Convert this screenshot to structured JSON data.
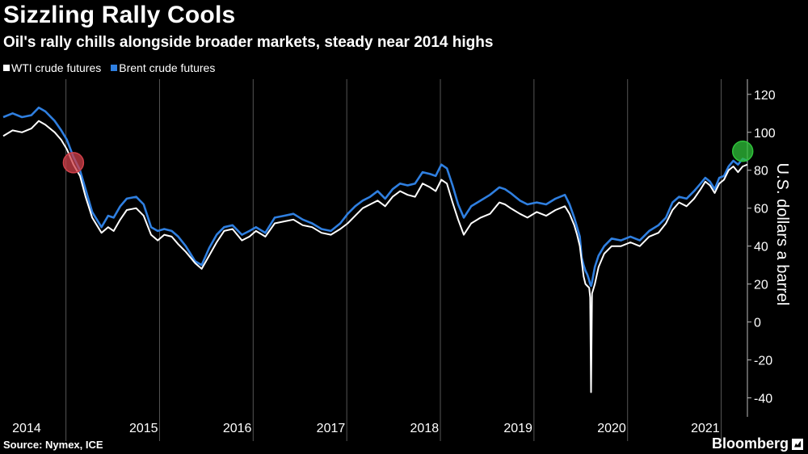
{
  "title": "Sizzling Rally Cools",
  "subtitle": "Oil's rally chills alongside broader markets, steady near 2014 highs",
  "source": "Source: Nymex, ICE",
  "brand": "Bloomberg",
  "colors": {
    "background": "#000000",
    "wti": "#ffffff",
    "brent": "#2f7fe0",
    "grid": "#555555",
    "start_marker": "#d0404a",
    "end_marker": "#2fc23a"
  },
  "chart_data": {
    "type": "line",
    "title": "Sizzling Rally Cools",
    "xlabel": "",
    "ylabel": "U.S. dollars a barrel",
    "ylim": [
      -50,
      128
    ],
    "xlim": [
      2014.0,
      2021.95
    ],
    "y_ticks": [
      120,
      100,
      80,
      60,
      40,
      20,
      0,
      -20,
      -40
    ],
    "x_tick_labels": [
      "2014",
      "2015",
      "2016",
      "2017",
      "2018",
      "2019",
      "2020",
      "2021"
    ],
    "x_tick_label_positions": [
      2014.25,
      2015.5,
      2016.5,
      2017.5,
      2018.5,
      2019.5,
      2020.5,
      2021.5
    ],
    "x_dividers": [
      2014.67,
      2015.67,
      2016.67,
      2017.67,
      2018.67,
      2019.67,
      2020.67,
      2021.67
    ],
    "legend": [
      "WTI crude futures",
      "Brent crude futures"
    ],
    "series": [
      {
        "name": "WTI crude futures",
        "x": [
          2014.0,
          2014.1,
          2014.2,
          2014.3,
          2014.38,
          2014.45,
          2014.55,
          2014.62,
          2014.68,
          2014.75,
          2014.82,
          2014.88,
          2014.95,
          2015.05,
          2015.12,
          2015.18,
          2015.25,
          2015.32,
          2015.42,
          2015.5,
          2015.58,
          2015.65,
          2015.72,
          2015.8,
          2015.87,
          2015.95,
          2016.0,
          2016.05,
          2016.12,
          2016.2,
          2016.28,
          2016.36,
          2016.45,
          2016.55,
          2016.63,
          2016.7,
          2016.8,
          2016.9,
          2017.0,
          2017.1,
          2017.2,
          2017.3,
          2017.4,
          2017.5,
          2017.6,
          2017.68,
          2017.76,
          2017.84,
          2017.92,
          2018.0,
          2018.08,
          2018.16,
          2018.24,
          2018.32,
          2018.4,
          2018.48,
          2018.56,
          2018.62,
          2018.68,
          2018.74,
          2018.8,
          2018.86,
          2018.92,
          2019.0,
          2019.1,
          2019.2,
          2019.3,
          2019.36,
          2019.42,
          2019.52,
          2019.6,
          2019.7,
          2019.8,
          2019.9,
          2020.0,
          2020.05,
          2020.1,
          2020.13,
          2020.16,
          2020.18,
          2020.2,
          2020.22,
          2020.24,
          2020.26,
          2020.27,
          2020.28,
          2020.29,
          2020.32,
          2020.36,
          2020.42,
          2020.5,
          2020.6,
          2020.7,
          2020.8,
          2020.9,
          2021.0,
          2021.08,
          2021.15,
          2021.22,
          2021.3,
          2021.38,
          2021.45,
          2021.5,
          2021.55,
          2021.6,
          2021.65,
          2021.7,
          2021.75,
          2021.8,
          2021.85,
          2021.9,
          2021.95
        ],
        "values": [
          98,
          101,
          100,
          102,
          106,
          104,
          100,
          96,
          91,
          83,
          77,
          66,
          55,
          47,
          50,
          48,
          54,
          59,
          60,
          56,
          46,
          43,
          46,
          45,
          41,
          37,
          34,
          31,
          28,
          35,
          42,
          48,
          49,
          43,
          45,
          48,
          45,
          52,
          53,
          54,
          51,
          50,
          47,
          46,
          49,
          52,
          56,
          60,
          62,
          64,
          61,
          66,
          69,
          67,
          66,
          73,
          71,
          69,
          75,
          73,
          63,
          54,
          46,
          52,
          55,
          57,
          63,
          62,
          60,
          57,
          55,
          58,
          56,
          59,
          61,
          57,
          51,
          46,
          40,
          32,
          24,
          20,
          19,
          18,
          13,
          -37,
          15,
          20,
          29,
          36,
          40,
          40,
          42,
          40,
          45,
          47,
          52,
          59,
          63,
          61,
          65,
          70,
          74,
          72,
          68,
          73,
          75,
          80,
          82,
          79,
          82,
          83
        ]
      },
      {
        "name": "Brent crude futures",
        "x": [
          2014.0,
          2014.1,
          2014.2,
          2014.3,
          2014.38,
          2014.45,
          2014.55,
          2014.62,
          2014.68,
          2014.75,
          2014.82,
          2014.88,
          2014.95,
          2015.05,
          2015.12,
          2015.18,
          2015.25,
          2015.32,
          2015.42,
          2015.5,
          2015.58,
          2015.65,
          2015.72,
          2015.8,
          2015.87,
          2015.95,
          2016.0,
          2016.05,
          2016.12,
          2016.2,
          2016.28,
          2016.36,
          2016.45,
          2016.55,
          2016.63,
          2016.7,
          2016.8,
          2016.9,
          2017.0,
          2017.1,
          2017.2,
          2017.3,
          2017.4,
          2017.5,
          2017.6,
          2017.68,
          2017.76,
          2017.84,
          2017.92,
          2018.0,
          2018.08,
          2018.16,
          2018.24,
          2018.32,
          2018.4,
          2018.48,
          2018.56,
          2018.62,
          2018.68,
          2018.74,
          2018.8,
          2018.86,
          2018.92,
          2019.0,
          2019.1,
          2019.2,
          2019.3,
          2019.36,
          2019.42,
          2019.52,
          2019.6,
          2019.7,
          2019.8,
          2019.9,
          2020.0,
          2020.05,
          2020.1,
          2020.13,
          2020.16,
          2020.18,
          2020.2,
          2020.22,
          2020.24,
          2020.26,
          2020.27,
          2020.28,
          2020.29,
          2020.32,
          2020.36,
          2020.42,
          2020.5,
          2020.6,
          2020.7,
          2020.8,
          2020.9,
          2021.0,
          2021.08,
          2021.15,
          2021.22,
          2021.3,
          2021.38,
          2021.45,
          2021.5,
          2021.55,
          2021.6,
          2021.65,
          2021.7,
          2021.75,
          2021.8,
          2021.85,
          2021.9,
          2021.95
        ],
        "values": [
          108,
          110,
          108,
          109,
          113,
          111,
          106,
          101,
          96,
          87,
          80,
          70,
          58,
          50,
          56,
          55,
          61,
          65,
          66,
          62,
          50,
          48,
          49,
          48,
          45,
          40,
          36,
          32,
          30,
          39,
          46,
          50,
          51,
          46,
          48,
          50,
          47,
          55,
          56,
          57,
          54,
          52,
          49,
          48,
          52,
          57,
          61,
          64,
          66,
          69,
          65,
          70,
          73,
          72,
          73,
          79,
          78,
          77,
          83,
          81,
          72,
          62,
          55,
          61,
          64,
          67,
          71,
          70,
          68,
          64,
          62,
          63,
          62,
          65,
          67,
          62,
          55,
          50,
          45,
          34,
          30,
          27,
          25,
          22,
          20,
          19,
          21,
          29,
          35,
          40,
          44,
          43,
          45,
          43,
          48,
          51,
          55,
          63,
          66,
          65,
          69,
          73,
          76,
          74,
          70,
          76,
          77,
          82,
          85,
          83,
          86,
          85
        ]
      }
    ],
    "annotations": [
      {
        "type": "highlight-circle",
        "x": 2014.75,
        "y": 84,
        "color": "#d0404a"
      },
      {
        "type": "highlight-circle",
        "x": 2021.9,
        "y": 90,
        "color": "#2fc23a"
      }
    ]
  }
}
